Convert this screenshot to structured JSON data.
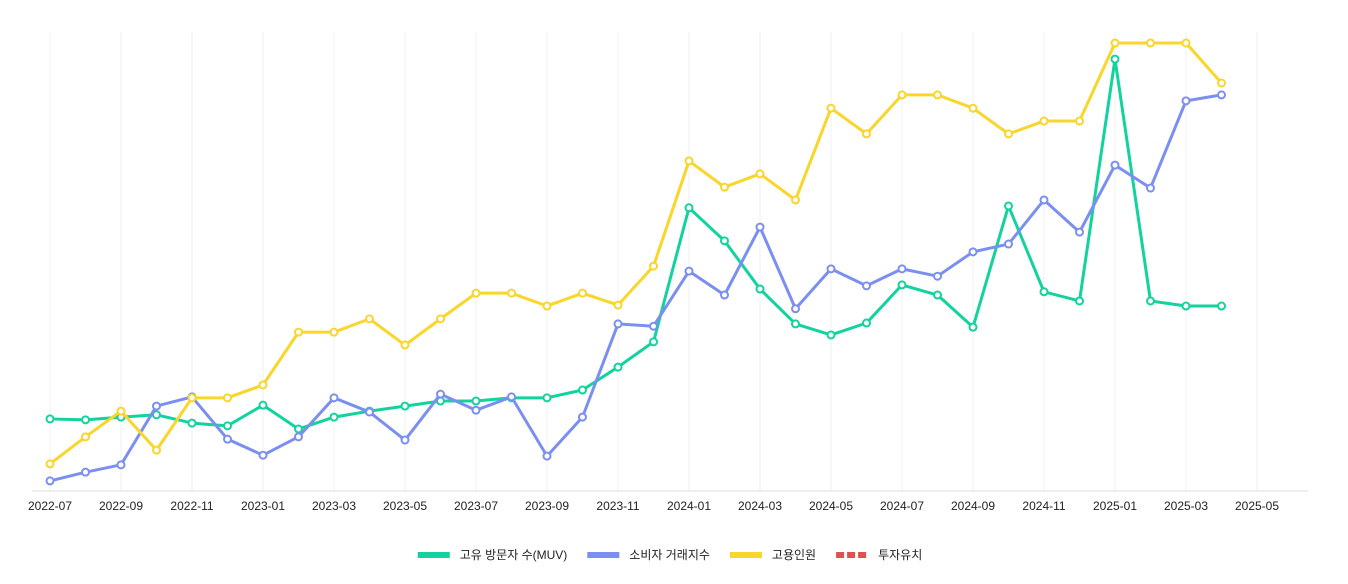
{
  "chart_data": {
    "type": "line",
    "x": [
      "2022-07",
      "2022-08",
      "2022-09",
      "2022-10",
      "2022-11",
      "2022-12",
      "2023-01",
      "2023-02",
      "2023-03",
      "2023-04",
      "2023-05",
      "2023-06",
      "2023-07",
      "2023-08",
      "2023-09",
      "2023-10",
      "2023-11",
      "2023-12",
      "2024-01",
      "2024-02",
      "2024-03",
      "2024-04",
      "2024-05",
      "2024-06",
      "2024-07",
      "2024-08",
      "2024-09",
      "2024-10",
      "2024-11",
      "2024-12",
      "2025-01",
      "2025-02",
      "2025-03",
      "2025-04"
    ],
    "xticks": [
      "2022-07",
      "2022-09",
      "2022-11",
      "2023-01",
      "2023-03",
      "2023-05",
      "2023-07",
      "2023-09",
      "2023-11",
      "2024-01",
      "2024-03",
      "2024-05",
      "2024-07",
      "2024-09",
      "2024-11",
      "2025-01",
      "2025-03",
      "2025-05"
    ],
    "ylim": [
      0,
      100
    ],
    "grid": true,
    "legend": "bottom",
    "series": [
      {
        "name": "고유 방문자 수(MUV)",
        "color": "#12d39e",
        "values": [
          15.7,
          15.5,
          16.1,
          16.6,
          14.8,
          14.2,
          18.7,
          13.5,
          16.1,
          17.4,
          18.5,
          19.6,
          19.6,
          20.3,
          20.3,
          22.0,
          27.0,
          32.5,
          61.7,
          54.5,
          44.0,
          36.4,
          34.0,
          36.6,
          44.9,
          42.7,
          35.7,
          62.1,
          43.4,
          41.4,
          94.1,
          41.4,
          40.3,
          40.3
        ]
      },
      {
        "name": "소비자 거래지수",
        "color": "#7b8ff0",
        "values": [
          2.2,
          4.1,
          5.7,
          18.5,
          20.5,
          11.3,
          7.8,
          11.8,
          20.3,
          17.2,
          11.1,
          21.1,
          17.6,
          20.5,
          7.6,
          16.1,
          36.4,
          35.9,
          47.9,
          42.7,
          57.5,
          39.7,
          48.4,
          44.7,
          48.4,
          46.8,
          52.1,
          53.8,
          63.4,
          56.4,
          71.0,
          66.0,
          85.0,
          86.3
        ]
      },
      {
        "name": "고용인원",
        "color": "#fad52a",
        "values": [
          5.9,
          11.8,
          17.4,
          8.9,
          20.3,
          20.3,
          23.1,
          34.6,
          34.6,
          37.5,
          31.8,
          37.5,
          43.1,
          43.1,
          40.3,
          43.1,
          40.5,
          49.0,
          71.9,
          66.2,
          69.1,
          63.4,
          83.4,
          77.8,
          86.3,
          86.3,
          83.4,
          77.8,
          80.6,
          80.6,
          97.6,
          97.6,
          97.6,
          88.9
        ]
      },
      {
        "name": "투자유치",
        "color": "#e05252",
        "dashed": true,
        "values": [
          null,
          null,
          null,
          null,
          null,
          null,
          null,
          null,
          null,
          null,
          null,
          null,
          null,
          null,
          null,
          null,
          null,
          null,
          null,
          null,
          null,
          null,
          null,
          null,
          null,
          null,
          null,
          null,
          null,
          null,
          null,
          null,
          null,
          null
        ]
      }
    ]
  }
}
